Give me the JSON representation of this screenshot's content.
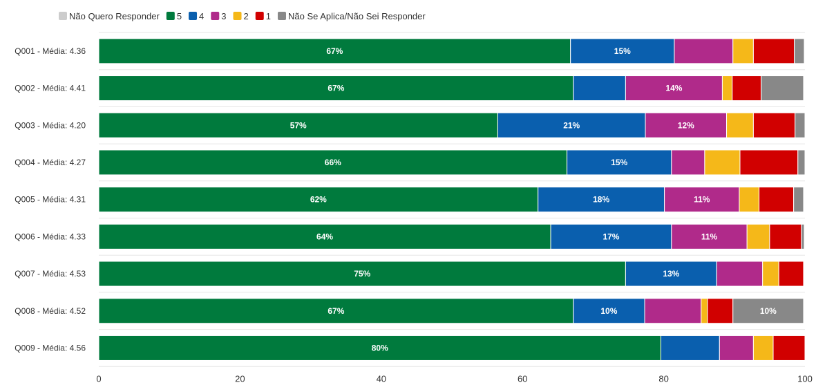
{
  "chart_data": {
    "type": "bar",
    "orientation": "horizontal",
    "stacked": true,
    "categories": [
      "Q001 - Média: 4.36",
      "Q002 - Média: 4.41",
      "Q003 - Média: 4.20",
      "Q004 - Média: 4.27",
      "Q005 - Média: 4.31",
      "Q006 - Média: 4.33",
      "Q007 - Média: 4.53",
      "Q008 - Média: 4.52",
      "Q009 - Média: 4.56"
    ],
    "series": [
      {
        "name": "5",
        "color": "#007a3d",
        "values": [
          66.8,
          67.2,
          56.5,
          66.3,
          62.2,
          64.0,
          74.6,
          67.2,
          79.6
        ]
      },
      {
        "name": "4",
        "color": "#0a5fae",
        "values": [
          14.7,
          7.4,
          20.9,
          14.8,
          17.9,
          17.1,
          12.9,
          10.1,
          8.3
        ]
      },
      {
        "name": "3",
        "color": "#b02a8a",
        "values": [
          8.3,
          13.7,
          11.5,
          4.7,
          10.6,
          10.7,
          6.5,
          8.0,
          4.8
        ]
      },
      {
        "name": "2",
        "color": "#f5b819",
        "values": [
          2.9,
          1.4,
          3.8,
          5.0,
          2.8,
          3.2,
          2.3,
          0.9,
          2.8
        ]
      },
      {
        "name": "1",
        "color": "#d10000",
        "values": [
          5.8,
          4.1,
          5.9,
          8.2,
          4.9,
          4.5,
          3.5,
          3.6,
          4.5
        ]
      },
      {
        "name": "Não Se Aplica/Não Sei Responder",
        "color": "#888888",
        "values": [
          1.4,
          6.0,
          1.4,
          1.0,
          1.4,
          0.4,
          0.0,
          10.0,
          0.0
        ]
      },
      {
        "name": "Não Quero Responder",
        "color": "#cccccc",
        "values": [
          0,
          0,
          0,
          0,
          0,
          0,
          0,
          0,
          0
        ]
      }
    ],
    "data_labels": [
      [
        "67%",
        "15%",
        "",
        "",
        "",
        "",
        ""
      ],
      [
        "67%",
        "",
        "14%",
        "",
        "",
        "",
        ""
      ],
      [
        "57%",
        "21%",
        "12%",
        "",
        "",
        "",
        ""
      ],
      [
        "66%",
        "15%",
        "",
        "",
        "",
        "",
        ""
      ],
      [
        "62%",
        "18%",
        "11%",
        "",
        "",
        "",
        ""
      ],
      [
        "64%",
        "17%",
        "11%",
        "",
        "",
        "",
        ""
      ],
      [
        "75%",
        "13%",
        "",
        "",
        "",
        "",
        ""
      ],
      [
        "67%",
        "10%",
        "",
        "",
        "",
        "10%",
        ""
      ],
      [
        "80%",
        "",
        "",
        "",
        "",
        "",
        ""
      ]
    ],
    "legend": {
      "position": "top-left",
      "order": [
        "Não Quero Responder",
        "5",
        "4",
        "3",
        "2",
        "1",
        "Não Se Aplica/Não Sei Responder"
      ]
    },
    "x_ticks": [
      "0",
      "20",
      "40",
      "60",
      "80",
      "100"
    ],
    "xlim": [
      0,
      100
    ],
    "title": "",
    "xlabel": "",
    "ylabel": "",
    "grid": true,
    "grid_color": "#e6e6e6"
  }
}
